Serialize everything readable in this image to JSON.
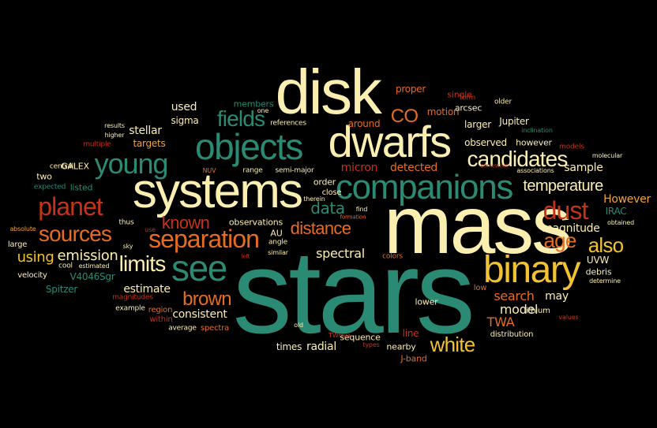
{
  "words": [
    {
      "text": "stars",
      "color": "c1"
    },
    {
      "text": "mass",
      "color": "c2"
    },
    {
      "text": "disk",
      "color": "c2"
    },
    {
      "text": "systems",
      "color": "c2"
    },
    {
      "text": "dwarfs",
      "color": "c2"
    },
    {
      "text": "objects",
      "color": "c1"
    },
    {
      "text": "companions",
      "color": "c1"
    },
    {
      "text": "binary",
      "color": "c3"
    },
    {
      "text": "see",
      "color": "c1"
    },
    {
      "text": "young",
      "color": "c1"
    },
    {
      "text": "separation",
      "color": "c4"
    },
    {
      "text": "planet",
      "color": "c5"
    },
    {
      "text": "candidates",
      "color": "c2"
    },
    {
      "text": "sources",
      "color": "c4"
    },
    {
      "text": "fields",
      "color": "c1"
    },
    {
      "text": "dust",
      "color": "c5"
    },
    {
      "text": "limits",
      "color": "c2"
    },
    {
      "text": "brown",
      "color": "c4"
    },
    {
      "text": "white",
      "color": "c3"
    },
    {
      "text": "distance",
      "color": "c4"
    },
    {
      "text": "age",
      "color": "c4"
    },
    {
      "text": "also",
      "color": "c3"
    },
    {
      "text": "known",
      "color": "c5"
    },
    {
      "text": "CO",
      "color": "c4"
    },
    {
      "text": "temperature",
      "color": "c2"
    },
    {
      "text": "emission",
      "color": "c2"
    },
    {
      "text": "data",
      "color": "c1"
    },
    {
      "text": "spectral",
      "color": "c2"
    },
    {
      "text": "using",
      "color": "c3"
    },
    {
      "text": "estimate",
      "color": "c2"
    },
    {
      "text": "model",
      "color": "c2"
    },
    {
      "text": "search",
      "color": "c4"
    },
    {
      "text": "magnitude",
      "color": "c2"
    },
    {
      "text": "TWA",
      "color": "c4"
    },
    {
      "text": "micron",
      "color": "c5"
    },
    {
      "text": "detected",
      "color": "c4"
    },
    {
      "text": "consistent",
      "color": "c2"
    },
    {
      "text": "may",
      "color": "c2"
    },
    {
      "text": "stellar",
      "color": "c2"
    },
    {
      "text": "used",
      "color": "c2"
    },
    {
      "text": "sample",
      "color": "c2"
    },
    {
      "text": "However",
      "color": "c6"
    },
    {
      "text": "targets",
      "color": "c6"
    },
    {
      "text": "Spitzer",
      "color": "c1"
    },
    {
      "text": "radial",
      "color": "c2"
    },
    {
      "text": "times",
      "color": "c2"
    },
    {
      "text": "observed",
      "color": "c2"
    },
    {
      "text": "larger",
      "color": "c2"
    },
    {
      "text": "motion",
      "color": "c4"
    },
    {
      "text": "proper",
      "color": "c4"
    },
    {
      "text": "around",
      "color": "c4"
    },
    {
      "text": "sigma",
      "color": "c2"
    },
    {
      "text": "V4046Sgr",
      "color": "c1"
    },
    {
      "text": "UVW",
      "color": "c2"
    },
    {
      "text": "IRAC",
      "color": "c1"
    },
    {
      "text": "Jupiter",
      "color": "c2"
    },
    {
      "text": "members",
      "color": "c1"
    },
    {
      "text": "however",
      "color": "c2"
    },
    {
      "text": "nearby",
      "color": "c2"
    },
    {
      "text": "sequence",
      "color": "c2"
    },
    {
      "text": "J-band",
      "color": "c4"
    },
    {
      "text": "line",
      "color": "c5"
    },
    {
      "text": "lower",
      "color": "c2"
    },
    {
      "text": "debris",
      "color": "c2"
    },
    {
      "text": "lithium",
      "color": "c2"
    },
    {
      "text": "order",
      "color": "c2"
    },
    {
      "text": "close",
      "color": "c2"
    },
    {
      "text": "AU",
      "color": "c2"
    },
    {
      "text": "observations",
      "color": "c2"
    },
    {
      "text": "GALEX",
      "color": "c2"
    },
    {
      "text": "listed",
      "color": "c1"
    },
    {
      "text": "two",
      "color": "c2"
    },
    {
      "text": "central",
      "color": "c2"
    },
    {
      "text": "expected",
      "color": "c1"
    },
    {
      "text": "references",
      "color": "c2"
    },
    {
      "text": "single",
      "color": "c5"
    },
    {
      "text": "arcsec",
      "color": "c2"
    },
    {
      "text": "form",
      "color": "c5"
    },
    {
      "text": "older",
      "color": "c2"
    },
    {
      "text": "results",
      "color": "c2"
    },
    {
      "text": "higher",
      "color": "c2"
    },
    {
      "text": "multiple",
      "color": "c5"
    },
    {
      "text": "semi-major",
      "color": "c2"
    },
    {
      "text": "range",
      "color": "c2"
    },
    {
      "text": "NUV",
      "color": "c4"
    },
    {
      "text": "one",
      "color": "c2"
    },
    {
      "text": "models",
      "color": "c5"
    },
    {
      "text": "molecular",
      "color": "c2"
    },
    {
      "text": "associations",
      "color": "c2"
    },
    {
      "text": "somewhat",
      "color": "c5"
    },
    {
      "text": "inclination",
      "color": "c1"
    },
    {
      "text": "obtained",
      "color": "c2"
    },
    {
      "text": "determine",
      "color": "c2"
    },
    {
      "text": "values",
      "color": "c5"
    },
    {
      "text": "distribution",
      "color": "c2"
    },
    {
      "text": "low",
      "color": "c4"
    },
    {
      "text": "colors",
      "color": "c4"
    },
    {
      "text": "spectra",
      "color": "c4"
    },
    {
      "text": "within",
      "color": "c5"
    },
    {
      "text": "region",
      "color": "c4"
    },
    {
      "text": "average",
      "color": "c2"
    },
    {
      "text": "example",
      "color": "c2"
    },
    {
      "text": "magnitudes",
      "color": "c5"
    },
    {
      "text": "velocity",
      "color": "c2"
    },
    {
      "text": "cool",
      "color": "c2"
    },
    {
      "text": "estimated",
      "color": "c2"
    },
    {
      "text": "thus",
      "color": "c2"
    },
    {
      "text": "absolute",
      "color": "c6"
    },
    {
      "text": "large",
      "color": "c2"
    },
    {
      "text": "use",
      "color": "c5"
    },
    {
      "text": "sky",
      "color": "c2"
    },
    {
      "text": "angle",
      "color": "c2"
    },
    {
      "text": "similar",
      "color": "c2"
    },
    {
      "text": "left",
      "color": "c5"
    },
    {
      "text": "therein",
      "color": "c2"
    },
    {
      "text": "formation",
      "color": "c4"
    },
    {
      "text": "find",
      "color": "c2"
    },
    {
      "text": "old",
      "color": "c2"
    },
    {
      "text": "TWHya",
      "color": "c5"
    },
    {
      "text": "types",
      "color": "c5"
    }
  ]
}
